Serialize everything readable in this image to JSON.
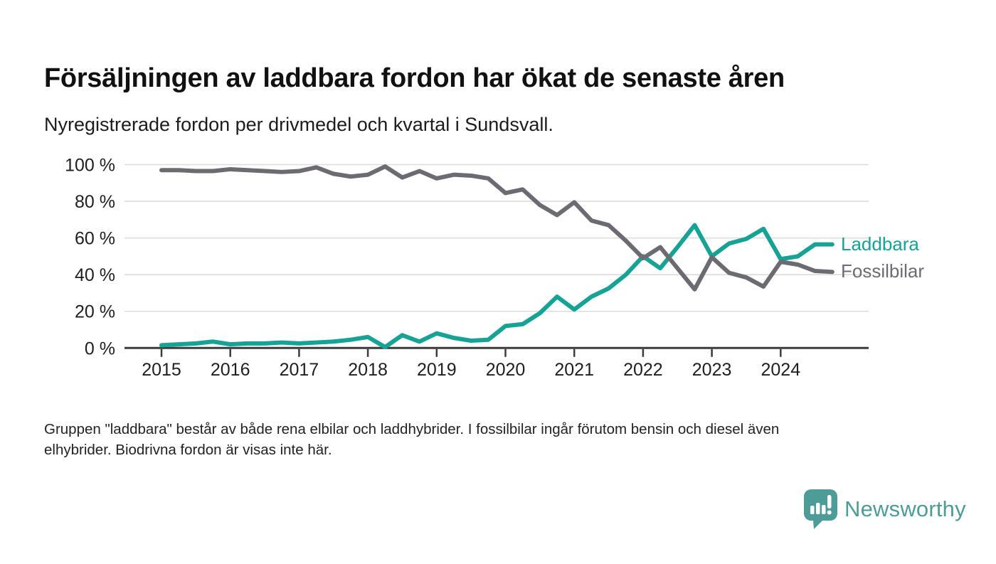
{
  "header": {
    "title": "Försäljningen av laddbara fordon har ökat de senaste åren",
    "subtitle": "Nyregistrerade fordon per drivmedel och kvartal i Sundsvall."
  },
  "footer": {
    "line1": "Gruppen \"laddbara\" består av både rena elbilar och laddhybrider. I fossilbilar ingår förutom bensin och diesel även",
    "line2": "elhybrider. Biodrivna fordon är visas inte här."
  },
  "brand": {
    "name": "Newsworthy",
    "icon": "bar-chart-speech-bubble-icon",
    "color": "#4d9c97"
  },
  "chart_data": {
    "type": "line",
    "title": "Försäljningen av laddbara fordon har ökat de senaste åren",
    "subtitle": "Nyregistrerade fordon per drivmedel och kvartal i Sundsvall.",
    "xlabel": "",
    "ylabel": "",
    "unit": "%",
    "grid": "horizontal",
    "legend_position": "right-of-line-end",
    "ylim": [
      0,
      100
    ],
    "y_ticks": [
      0,
      20,
      40,
      60,
      80,
      100
    ],
    "y_tick_labels": [
      "0 %",
      "20 %",
      "40 %",
      "60 %",
      "80 %",
      "100 %"
    ],
    "x_tick_labels": [
      "2015",
      "2016",
      "2017",
      "2018",
      "2019",
      "2020",
      "2021",
      "2022",
      "2023",
      "2024"
    ],
    "x": [
      "2015-Q1",
      "2015-Q2",
      "2015-Q3",
      "2015-Q4",
      "2016-Q1",
      "2016-Q2",
      "2016-Q3",
      "2016-Q4",
      "2017-Q1",
      "2017-Q2",
      "2017-Q3",
      "2017-Q4",
      "2018-Q1",
      "2018-Q2",
      "2018-Q3",
      "2018-Q4",
      "2019-Q1",
      "2019-Q2",
      "2019-Q3",
      "2019-Q4",
      "2020-Q1",
      "2020-Q2",
      "2020-Q3",
      "2020-Q4",
      "2021-Q1",
      "2021-Q2",
      "2021-Q3",
      "2021-Q4",
      "2022-Q1",
      "2022-Q2",
      "2022-Q3",
      "2022-Q4",
      "2023-Q1",
      "2023-Q2",
      "2023-Q3",
      "2023-Q4",
      "2024-Q1",
      "2024-Q2",
      "2024-Q3",
      "2024-Q4"
    ],
    "series": [
      {
        "name": "Laddbara",
        "color": "#16a295",
        "values": [
          1.5,
          2,
          2.5,
          3.5,
          2,
          2.5,
          2.5,
          3,
          2.5,
          3,
          3.5,
          4.5,
          6,
          0.5,
          7,
          3.5,
          8,
          5.5,
          4,
          4.5,
          12,
          13,
          19,
          28,
          21,
          28,
          32.5,
          40,
          50,
          43.5,
          55,
          67,
          50,
          57,
          59.5,
          65,
          48.5,
          50,
          56.5,
          56.5
        ]
      },
      {
        "name": "Fossilbilar",
        "color": "#6e6a72",
        "values": [
          97,
          97,
          96.5,
          96.5,
          97.5,
          97,
          96.5,
          96,
          96.5,
          98.5,
          95,
          93.5,
          94.5,
          99,
          93,
          96.5,
          92.5,
          94.5,
          94,
          92.5,
          84.5,
          86.5,
          78,
          72.5,
          79.5,
          69.5,
          67,
          58.5,
          49,
          55,
          43.5,
          32,
          49.5,
          41,
          38.5,
          33.5,
          47,
          45.5,
          42,
          41.5
        ]
      }
    ]
  }
}
